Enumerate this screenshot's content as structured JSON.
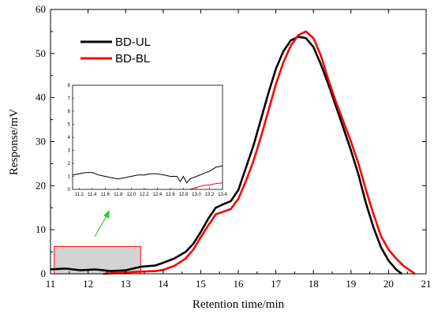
{
  "chart_data": {
    "type": "line",
    "xlabel": "Retention time/min",
    "ylabel": "Response/mV",
    "xlim": [
      11,
      21
    ],
    "ylim": [
      0,
      60
    ],
    "xticks": [
      11,
      12,
      13,
      14,
      15,
      16,
      17,
      18,
      19,
      20,
      21
    ],
    "yticks": [
      0,
      10,
      20,
      30,
      40,
      50,
      60
    ],
    "legend_position": "top-left",
    "series": [
      {
        "name": "BD-UL",
        "color": "#000000",
        "points": [
          [
            11.0,
            1.0
          ],
          [
            11.4,
            1.2
          ],
          [
            11.8,
            0.8
          ],
          [
            12.2,
            1.0
          ],
          [
            12.6,
            0.6
          ],
          [
            13.0,
            0.8
          ],
          [
            13.4,
            1.6
          ],
          [
            13.8,
            1.9
          ],
          [
            14.0,
            2.5
          ],
          [
            14.3,
            3.5
          ],
          [
            14.6,
            5.0
          ],
          [
            14.8,
            6.8
          ],
          [
            15.0,
            9.5
          ],
          [
            15.2,
            12.5
          ],
          [
            15.4,
            15.0
          ],
          [
            15.6,
            15.8
          ],
          [
            15.8,
            16.5
          ],
          [
            16.0,
            19.0
          ],
          [
            16.2,
            24.0
          ],
          [
            16.4,
            29.0
          ],
          [
            16.6,
            35.0
          ],
          [
            16.8,
            41.0
          ],
          [
            17.0,
            46.5
          ],
          [
            17.2,
            50.5
          ],
          [
            17.4,
            53.0
          ],
          [
            17.6,
            53.8
          ],
          [
            17.8,
            53.5
          ],
          [
            18.0,
            51.5
          ],
          [
            18.2,
            47.5
          ],
          [
            18.4,
            43.0
          ],
          [
            18.6,
            38.0
          ],
          [
            18.8,
            33.0
          ],
          [
            19.0,
            28.0
          ],
          [
            19.2,
            22.5
          ],
          [
            19.4,
            16.0
          ],
          [
            19.6,
            10.5
          ],
          [
            19.8,
            6.0
          ],
          [
            20.0,
            3.0
          ],
          [
            20.2,
            1.0
          ],
          [
            20.35,
            0.0
          ]
        ]
      },
      {
        "name": "BD-BL",
        "color": "#ff0000",
        "points": [
          [
            12.4,
            0.0
          ],
          [
            13.0,
            0.3
          ],
          [
            13.4,
            0.5
          ],
          [
            13.8,
            0.6
          ],
          [
            14.0,
            0.9
          ],
          [
            14.3,
            1.8
          ],
          [
            14.6,
            3.5
          ],
          [
            14.8,
            5.5
          ],
          [
            15.0,
            8.3
          ],
          [
            15.2,
            11.0
          ],
          [
            15.4,
            13.5
          ],
          [
            15.6,
            14.1
          ],
          [
            15.8,
            14.7
          ],
          [
            16.0,
            17.0
          ],
          [
            16.2,
            21.0
          ],
          [
            16.4,
            25.5
          ],
          [
            16.6,
            31.0
          ],
          [
            16.8,
            37.0
          ],
          [
            17.0,
            43.0
          ],
          [
            17.2,
            48.0
          ],
          [
            17.4,
            51.8
          ],
          [
            17.6,
            54.2
          ],
          [
            17.8,
            55.0
          ],
          [
            18.0,
            53.5
          ],
          [
            18.2,
            49.5
          ],
          [
            18.4,
            44.0
          ],
          [
            18.6,
            39.0
          ],
          [
            18.8,
            34.5
          ],
          [
            19.0,
            30.0
          ],
          [
            19.2,
            25.0
          ],
          [
            19.4,
            19.0
          ],
          [
            19.6,
            13.5
          ],
          [
            19.8,
            8.5
          ],
          [
            20.0,
            5.5
          ],
          [
            20.2,
            3.5
          ],
          [
            20.4,
            1.8
          ],
          [
            20.6,
            0.6
          ],
          [
            20.7,
            0.0
          ]
        ]
      }
    ],
    "highlight_region": {
      "x": [
        11.1,
        13.4
      ],
      "y": [
        0,
        6.2
      ],
      "fill": "#d3d3d3",
      "stroke": "#ff0000"
    },
    "arrow_color": "#33cc33",
    "inset": {
      "xlim": [
        11.1,
        13.4
      ],
      "ylim": [
        0,
        8
      ],
      "xticks": [
        11.2,
        11.4,
        11.6,
        11.8,
        12.0,
        12.2,
        12.4,
        12.6,
        12.8,
        13.0,
        13.2,
        13.4
      ],
      "yticks": [
        0,
        1,
        2,
        3,
        4,
        5,
        6,
        7,
        8
      ],
      "series": [
        {
          "name": "BD-UL",
          "color": "#000000",
          "points": [
            [
              11.1,
              1.1
            ],
            [
              11.2,
              1.2
            ],
            [
              11.3,
              1.3
            ],
            [
              11.4,
              1.3
            ],
            [
              11.5,
              1.1
            ],
            [
              11.6,
              1.0
            ],
            [
              11.7,
              0.9
            ],
            [
              11.8,
              0.8
            ],
            [
              11.9,
              0.9
            ],
            [
              12.0,
              1.0
            ],
            [
              12.1,
              1.1
            ],
            [
              12.2,
              1.1
            ],
            [
              12.3,
              1.2
            ],
            [
              12.4,
              1.2
            ],
            [
              12.5,
              1.1
            ],
            [
              12.6,
              1.0
            ],
            [
              12.7,
              1.0
            ],
            [
              12.75,
              0.6
            ],
            [
              12.8,
              1.0
            ],
            [
              12.85,
              0.5
            ],
            [
              12.9,
              0.8
            ],
            [
              13.0,
              1.0
            ],
            [
              13.1,
              1.2
            ],
            [
              13.2,
              1.4
            ],
            [
              13.3,
              1.7
            ],
            [
              13.4,
              1.8
            ]
          ]
        },
        {
          "name": "BD-BL",
          "color": "#ff0000",
          "points": [
            [
              12.9,
              0.0
            ],
            [
              13.0,
              0.15
            ],
            [
              13.1,
              0.3
            ],
            [
              13.2,
              0.35
            ],
            [
              13.3,
              0.45
            ],
            [
              13.4,
              0.5
            ]
          ]
        }
      ]
    }
  }
}
